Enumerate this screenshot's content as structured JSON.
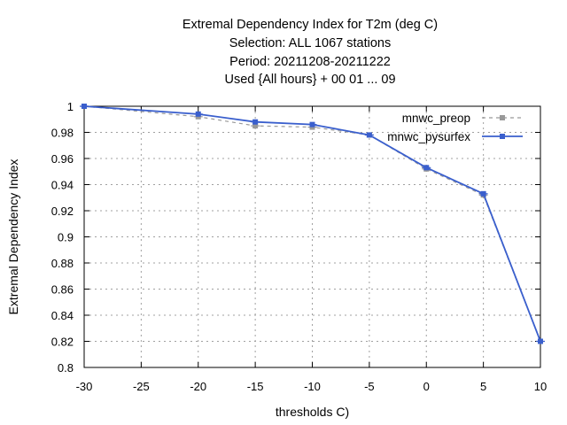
{
  "chart_data": {
    "type": "line",
    "title_lines": [
      "Extremal Dependency Index  for T2m (deg C)",
      "Selection: ALL    1067 stations",
      "Period: 20211208-20211222",
      "Used {All hours} + 00 01 ... 09"
    ],
    "xlabel": "thresholds C)",
    "ylabel": "Extremal Dependency Index",
    "xlim": [
      -30,
      10
    ],
    "ylim": [
      0.8,
      1.0
    ],
    "xticks": [
      -30,
      -25,
      -20,
      -15,
      -10,
      -5,
      0,
      5,
      10
    ],
    "yticks": [
      0.8,
      0.82,
      0.84,
      0.86,
      0.88,
      0.9,
      0.92,
      0.94,
      0.96,
      0.98,
      1
    ],
    "ytick_labels": [
      "0.8",
      "0.82",
      "0.84",
      "0.86",
      "0.88",
      "0.9",
      "0.92",
      "0.94",
      "0.96",
      "0.98",
      "1"
    ],
    "grid": true,
    "legend_position": "top-right",
    "x": [
      -30,
      -20,
      -15,
      -10,
      -5,
      0,
      5,
      10
    ],
    "series": [
      {
        "name": "mnwc_preop",
        "color": "#999999",
        "style": "dashed",
        "values": [
          1.0,
          0.992,
          0.985,
          0.984,
          0.978,
          0.952,
          0.932,
          0.82
        ]
      },
      {
        "name": "mnwc_pysurfex",
        "color": "#3a5fcd",
        "style": "solid",
        "values": [
          1.0,
          0.994,
          0.988,
          0.986,
          0.978,
          0.953,
          0.933,
          0.82
        ]
      }
    ]
  }
}
